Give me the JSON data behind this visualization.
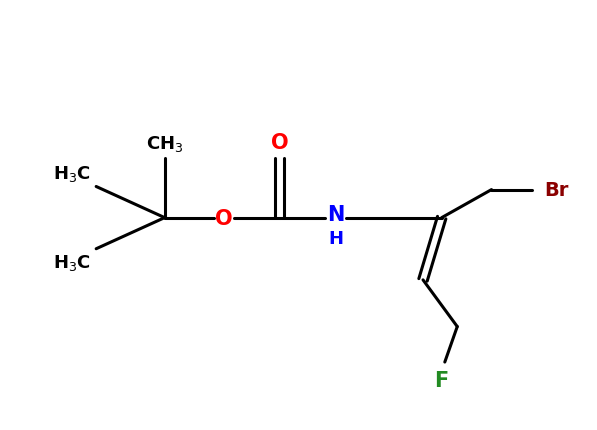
{
  "bg_color": "#ffffff",
  "bond_color": "#000000",
  "O_color": "#ff0000",
  "N_color": "#0000ff",
  "Br_color": "#8b0000",
  "F_color": "#228b22",
  "font_size": 13,
  "fig_width": 5.97,
  "fig_height": 4.31,
  "dpi": 100,
  "xlim": [
    0,
    9.5
  ],
  "ylim": [
    0,
    6.5
  ],
  "qc_x": 2.6,
  "qc_y": 3.2,
  "ch3_top_x": 2.6,
  "ch3_top_y": 4.15,
  "h3c_lu_x": 1.5,
  "h3c_lu_y": 3.7,
  "h3c_ll_x": 1.5,
  "h3c_ll_y": 2.7,
  "O_x": 3.55,
  "O_y": 3.2,
  "carb_x": 4.45,
  "carb_y": 3.2,
  "O2_x": 4.45,
  "O2_y": 4.15,
  "NH_x": 5.35,
  "NH_y": 3.2,
  "ch2_x": 6.2,
  "ch2_y": 3.2,
  "bp_x": 7.05,
  "bp_y": 3.2,
  "ch2br_x": 7.85,
  "ch2br_y": 3.65,
  "Br_x": 8.7,
  "Br_y": 3.65,
  "db_lower_x": 6.75,
  "db_lower_y": 2.2,
  "ch2f_x": 7.3,
  "ch2f_y": 1.45,
  "F_x": 7.05,
  "F_y": 0.75
}
